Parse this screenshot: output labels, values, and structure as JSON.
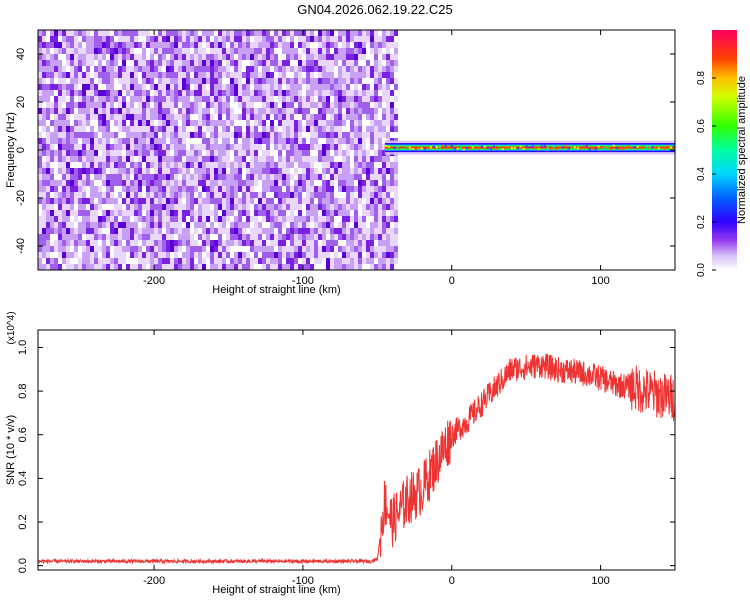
{
  "title": "GN04.2026.062.19.22.C25",
  "chart_data": [
    {
      "type": "heatmap",
      "xlabel": "Height of straight line (km)",
      "ylabel": "Frequency (Hz)",
      "xlim": [
        -278,
        150
      ],
      "ylim": [
        -50,
        50
      ],
      "xticks": [
        -200,
        -100,
        0,
        100
      ],
      "yticks": [
        -40,
        -20,
        0,
        20,
        40
      ],
      "noise_region_x": [
        -278,
        -38
      ],
      "signal_band": {
        "x": [
          -45,
          150
        ],
        "frequency_hz": 1
      },
      "colorbar": {
        "label": "Normalized spectral amplitude",
        "range": [
          0,
          1
        ],
        "ticks": [
          0.0,
          0.2,
          0.4,
          0.6,
          0.8
        ]
      },
      "colors": [
        "#ffffff",
        "#c8a8f0",
        "#7a20e0",
        "#0000ff",
        "#00c8ff",
        "#00ff40",
        "#ffff00",
        "#ff4000",
        "#ff0060"
      ]
    },
    {
      "type": "line",
      "xlabel": "Height of straight line (km)",
      "ylabel": "SNR (10 * v/v)",
      "y_multiplier": "(x10^4)",
      "xlim": [
        -278,
        150
      ],
      "ylim": [
        -0.02,
        1.08
      ],
      "xticks": [
        -200,
        -100,
        0,
        100
      ],
      "yticks": [
        0.0,
        0.2,
        0.4,
        0.6,
        0.8,
        1.0
      ],
      "color": "#ee3333",
      "series": [
        {
          "x": [
            -278,
            -200,
            -100,
            -60,
            -55,
            -50,
            -45,
            -40,
            -30,
            -20,
            -10,
            0,
            10,
            20,
            30,
            40,
            50,
            60,
            70,
            80,
            90,
            100,
            110,
            120,
            130,
            140,
            150
          ],
          "values": [
            0.02,
            0.02,
            0.02,
            0.02,
            0.02,
            0.03,
            0.3,
            0.2,
            0.3,
            0.35,
            0.48,
            0.6,
            0.66,
            0.74,
            0.82,
            0.9,
            0.91,
            0.92,
            0.9,
            0.89,
            0.88,
            0.86,
            0.83,
            0.82,
            0.8,
            0.78,
            0.77
          ]
        }
      ]
    }
  ]
}
